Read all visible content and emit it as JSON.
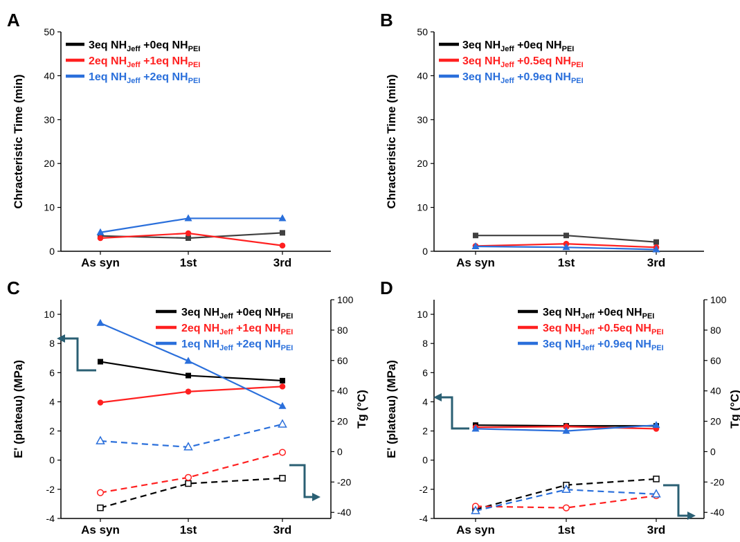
{
  "chart_data": [
    {
      "panel": "A",
      "type": "line",
      "categories": [
        "As syn",
        "1st",
        "3rd"
      ],
      "ylabel": "Chracteristic Time (min)",
      "ylim": [
        0,
        50
      ],
      "yticks": [
        "0",
        "10",
        "20",
        "30",
        "40",
        "50"
      ],
      "legend_position": "top-left",
      "legend": [
        {
          "color": "#000000",
          "parts": [
            {
              "t": "3eq NH"
            },
            {
              "t": "Jeff",
              "sub": true
            },
            {
              "t": " +0eq NH"
            },
            {
              "t": "PEI",
              "sub": true
            }
          ]
        },
        {
          "color": "#ff2020",
          "parts": [
            {
              "t": "2eq NH"
            },
            {
              "t": "Jeff",
              "sub": true
            },
            {
              "t": " +1eq NH"
            },
            {
              "t": "PEI",
              "sub": true
            }
          ]
        },
        {
          "color": "#2a6fdb",
          "parts": [
            {
              "t": "1eq NH"
            },
            {
              "t": "Jeff",
              "sub": true
            },
            {
              "t": " +2eq NH"
            },
            {
              "t": "PEI",
              "sub": true
            }
          ]
        }
      ],
      "series": [
        {
          "color": "#404040",
          "marker": "square",
          "axis": "left",
          "dash": false,
          "values": [
            3.5,
            3.0,
            4.2
          ]
        },
        {
          "color": "#ff2020",
          "marker": "circle",
          "axis": "left",
          "dash": false,
          "values": [
            3.0,
            4.1,
            1.3
          ]
        },
        {
          "color": "#2a6fdb",
          "marker": "triangle",
          "axis": "left",
          "dash": false,
          "values": [
            4.3,
            7.5,
            7.5
          ]
        }
      ]
    },
    {
      "panel": "B",
      "type": "line",
      "categories": [
        "As syn",
        "1st",
        "3rd"
      ],
      "ylabel": "Chracteristic Time (min)",
      "ylim": [
        0,
        50
      ],
      "yticks": [
        "0",
        "10",
        "20",
        "30",
        "40",
        "50"
      ],
      "legend_position": "top-left",
      "legend": [
        {
          "color": "#000000",
          "parts": [
            {
              "t": "3eq NH"
            },
            {
              "t": "Jeff",
              "sub": true
            },
            {
              "t": " +0eq NH"
            },
            {
              "t": "PEI",
              "sub": true
            }
          ]
        },
        {
          "color": "#ff2020",
          "parts": [
            {
              "t": "3eq NH"
            },
            {
              "t": "Jeff",
              "sub": true
            },
            {
              "t": " +0.5eq NH"
            },
            {
              "t": "PEI",
              "sub": true
            }
          ]
        },
        {
          "color": "#2a6fdb",
          "parts": [
            {
              "t": "3eq NH"
            },
            {
              "t": "Jeff",
              "sub": true
            },
            {
              "t": " +0.9eq NH"
            },
            {
              "t": "PEI",
              "sub": true
            }
          ]
        }
      ],
      "series": [
        {
          "color": "#404040",
          "marker": "square",
          "axis": "left",
          "dash": false,
          "values": [
            3.6,
            3.6,
            2.1
          ]
        },
        {
          "color": "#ff2020",
          "marker": "circle",
          "axis": "left",
          "dash": false,
          "values": [
            1.2,
            1.7,
            0.9
          ]
        },
        {
          "color": "#2a6fdb",
          "marker": "triangle",
          "axis": "left",
          "dash": false,
          "values": [
            1.1,
            0.9,
            0.4
          ]
        }
      ]
    },
    {
      "panel": "C",
      "type": "line",
      "categories": [
        "As syn",
        "1st",
        "3rd"
      ],
      "ylabel": "E' (plateau) (MPa)",
      "y2label": "Tg (°C)",
      "ylim": [
        -4,
        11
      ],
      "y2lim": [
        -44,
        100
      ],
      "yticks": [
        "-4",
        "-2",
        "0",
        "2",
        "4",
        "6",
        "8",
        "10"
      ],
      "y2ticks": [
        "-40",
        "-20",
        "0",
        "20",
        "40",
        "60",
        "80",
        "100"
      ],
      "legend_position": "top-right",
      "legend": [
        {
          "color": "#000000",
          "parts": [
            {
              "t": "3eq NH"
            },
            {
              "t": "Jeff",
              "sub": true
            },
            {
              "t": " +0eq NH"
            },
            {
              "t": "PEI",
              "sub": true
            }
          ]
        },
        {
          "color": "#ff2020",
          "parts": [
            {
              "t": "2eq NH"
            },
            {
              "t": "Jeff",
              "sub": true
            },
            {
              "t": " +1eq NH"
            },
            {
              "t": "PEI",
              "sub": true
            }
          ]
        },
        {
          "color": "#2a6fdb",
          "parts": [
            {
              "t": "1eq NH"
            },
            {
              "t": "Jeff",
              "sub": true
            },
            {
              "t": " +2eq NH"
            },
            {
              "t": "PEI",
              "sub": true
            }
          ]
        }
      ],
      "series": [
        {
          "color": "#000000",
          "marker": "square",
          "axis": "left",
          "dash": false,
          "values": [
            6.75,
            5.8,
            5.45
          ]
        },
        {
          "color": "#ff2020",
          "marker": "circle",
          "axis": "left",
          "dash": false,
          "values": [
            3.95,
            4.7,
            5.05
          ]
        },
        {
          "color": "#2a6fdb",
          "marker": "triangle",
          "axis": "left",
          "dash": false,
          "values": [
            9.4,
            6.8,
            3.7
          ]
        },
        {
          "color": "#000000",
          "marker": "square-open",
          "axis": "right",
          "dash": true,
          "values": [
            -37,
            -21,
            -17.5
          ]
        },
        {
          "color": "#ff2020",
          "marker": "circle-open",
          "axis": "right",
          "dash": true,
          "values": [
            -27,
            -17,
            -0.5
          ]
        },
        {
          "color": "#2a6fdb",
          "marker": "triangle-open",
          "axis": "right",
          "dash": true,
          "values": [
            7,
            3,
            18
          ]
        }
      ]
    },
    {
      "panel": "D",
      "type": "line",
      "categories": [
        "As syn",
        "1st",
        "3rd"
      ],
      "ylabel": "E' (plateau) (MPa)",
      "y2label": "Tg (°C)",
      "ylim": [
        -4,
        11
      ],
      "y2lim": [
        -44,
        100
      ],
      "yticks": [
        "-4",
        "-2",
        "0",
        "2",
        "4",
        "6",
        "8",
        "10"
      ],
      "y2ticks": [
        "-40",
        "-20",
        "0",
        "20",
        "40",
        "60",
        "80",
        "100"
      ],
      "legend_position": "top-right",
      "legend": [
        {
          "color": "#000000",
          "parts": [
            {
              "t": "3eq NH"
            },
            {
              "t": "Jeff",
              "sub": true
            },
            {
              "t": " +0eq NH"
            },
            {
              "t": "PEI",
              "sub": true
            }
          ]
        },
        {
          "color": "#ff2020",
          "parts": [
            {
              "t": "3eq NH"
            },
            {
              "t": "Jeff",
              "sub": true
            },
            {
              "t": " +0.5eq NH"
            },
            {
              "t": "PEI",
              "sub": true
            }
          ]
        },
        {
          "color": "#2a6fdb",
          "parts": [
            {
              "t": "3eq NH"
            },
            {
              "t": "Jeff",
              "sub": true
            },
            {
              "t": " +0.9eq NH"
            },
            {
              "t": "PEI",
              "sub": true
            }
          ]
        }
      ],
      "series": [
        {
          "color": "#000000",
          "marker": "square",
          "axis": "left",
          "dash": false,
          "values": [
            2.4,
            2.35,
            2.35
          ]
        },
        {
          "color": "#ff2020",
          "marker": "circle",
          "axis": "left",
          "dash": false,
          "values": [
            2.25,
            2.3,
            2.15
          ]
        },
        {
          "color": "#2a6fdb",
          "marker": "triangle",
          "axis": "left",
          "dash": false,
          "values": [
            2.15,
            2.0,
            2.4
          ]
        },
        {
          "color": "#000000",
          "marker": "square-open",
          "axis": "right",
          "dash": true,
          "values": [
            -38,
            -22,
            -18
          ]
        },
        {
          "color": "#ff2020",
          "marker": "circle-open",
          "axis": "right",
          "dash": true,
          "values": [
            -36,
            -37,
            -29
          ]
        },
        {
          "color": "#2a6fdb",
          "marker": "triangle-open",
          "axis": "right",
          "dash": true,
          "values": [
            -39,
            -25,
            -28
          ]
        }
      ]
    }
  ]
}
